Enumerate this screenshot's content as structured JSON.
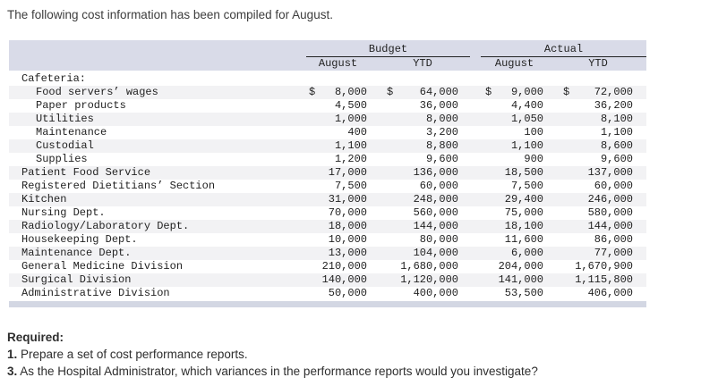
{
  "intro": "The following cost information has been compiled for August.",
  "table": {
    "groups": [
      {
        "label": "Budget"
      },
      {
        "label": "Actual"
      }
    ],
    "sub_headers": [
      "August",
      "YTD",
      "August",
      "YTD"
    ],
    "rows": [
      {
        "label": "Cafeteria:",
        "indent": 1,
        "dollar": false,
        "values": [
          "",
          "",
          "",
          ""
        ]
      },
      {
        "label": "Food servers’ wages",
        "indent": 2,
        "dollar": true,
        "values": [
          "8,000",
          "64,000",
          "9,000",
          "72,000"
        ]
      },
      {
        "label": "Paper products",
        "indent": 2,
        "dollar": false,
        "values": [
          "4,500",
          "36,000",
          "4,400",
          "36,200"
        ]
      },
      {
        "label": "Utilities",
        "indent": 2,
        "dollar": false,
        "values": [
          "1,000",
          "8,000",
          "1,050",
          "8,100"
        ]
      },
      {
        "label": "Maintenance",
        "indent": 2,
        "dollar": false,
        "values": [
          "400",
          "3,200",
          "100",
          "1,100"
        ]
      },
      {
        "label": "Custodial",
        "indent": 2,
        "dollar": false,
        "values": [
          "1,100",
          "8,800",
          "1,100",
          "8,600"
        ]
      },
      {
        "label": "Supplies",
        "indent": 2,
        "dollar": false,
        "values": [
          "1,200",
          "9,600",
          "900",
          "9,600"
        ]
      },
      {
        "label": "Patient Food Service",
        "indent": 1,
        "dollar": false,
        "values": [
          "17,000",
          "136,000",
          "18,500",
          "137,000"
        ]
      },
      {
        "label": "Registered Dietitians’ Section",
        "indent": 1,
        "dollar": false,
        "values": [
          "7,500",
          "60,000",
          "7,500",
          "60,000"
        ]
      },
      {
        "label": "Kitchen",
        "indent": 1,
        "dollar": false,
        "values": [
          "31,000",
          "248,000",
          "29,400",
          "246,000"
        ]
      },
      {
        "label": "Nursing Dept.",
        "indent": 1,
        "dollar": false,
        "values": [
          "70,000",
          "560,000",
          "75,000",
          "580,000"
        ]
      },
      {
        "label": "Radiology/Laboratory Dept.",
        "indent": 1,
        "dollar": false,
        "values": [
          "18,000",
          "144,000",
          "18,100",
          "144,000"
        ]
      },
      {
        "label": "Housekeeping Dept.",
        "indent": 1,
        "dollar": false,
        "values": [
          "10,000",
          "80,000",
          "11,600",
          "86,000"
        ]
      },
      {
        "label": "Maintenance Dept.",
        "indent": 1,
        "dollar": false,
        "values": [
          "13,000",
          "104,000",
          "6,000",
          "77,000"
        ]
      },
      {
        "label": "General Medicine Division",
        "indent": 1,
        "dollar": false,
        "values": [
          "210,000",
          "1,680,000",
          "204,000",
          "1,670,900"
        ]
      },
      {
        "label": "Surgical Division",
        "indent": 1,
        "dollar": false,
        "values": [
          "140,000",
          "1,120,000",
          "141,000",
          "1,115,800"
        ]
      },
      {
        "label": "Administrative Division",
        "indent": 1,
        "dollar": false,
        "values": [
          "50,000",
          "400,000",
          "53,500",
          "406,000"
        ]
      }
    ]
  },
  "required": {
    "heading": "Required:",
    "items": [
      {
        "num": "1.",
        "text": "Prepare a set of cost performance reports."
      },
      {
        "num": "3.",
        "text": "As the Hospital Administrator, which variances in the performance reports would you investigate?"
      }
    ]
  },
  "colors": {
    "header_band": "#d9dbe8",
    "footer_band": "#d3d7e3",
    "row_stripe": "#f2f2f4",
    "rule_line": "#222222"
  }
}
